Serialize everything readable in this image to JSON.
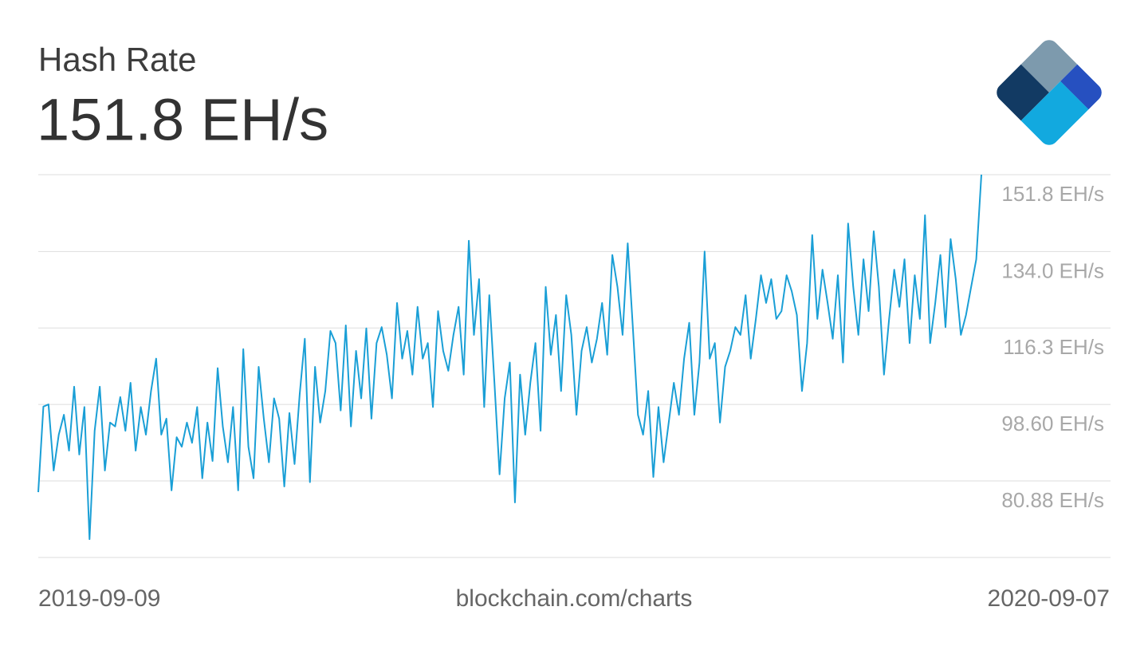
{
  "chart_data": {
    "type": "line",
    "title": "Hash Rate",
    "subtitle": "151.8 EH/s",
    "source": "blockchain.com/charts",
    "xlim": [
      "2019-09-09",
      "2020-09-07"
    ],
    "ylim": [
      63.16,
      151.8
    ],
    "yticks": [
      {
        "value": 151.8,
        "label": "151.8 EH/s"
      },
      {
        "value": 134.0,
        "label": "134.0 EH/s"
      },
      {
        "value": 116.3,
        "label": "116.3 EH/s"
      },
      {
        "value": 98.6,
        "label": "98.60 EH/s"
      },
      {
        "value": 80.88,
        "label": "80.88 EH/s"
      }
    ],
    "grid": true,
    "color": "#1a9fd6",
    "values": [
      78.3,
      98.1,
      98.6,
      83.3,
      91.6,
      96.2,
      87.9,
      102.7,
      87,
      98,
      67.4,
      92.5,
      102.7,
      83.3,
      94.4,
      93.5,
      100.3,
      92.5,
      103.6,
      87.9,
      98,
      91.6,
      101.7,
      109.2,
      91.6,
      95.3,
      78.7,
      91,
      88.8,
      94.4,
      89.7,
      98,
      81.5,
      94.4,
      85.5,
      107,
      93.5,
      85.2,
      98,
      78.7,
      111.4,
      88.8,
      81.5,
      107.3,
      95.3,
      85.2,
      100,
      95.3,
      79.6,
      96.6,
      84.8,
      100.9,
      113.8,
      80.6,
      107.3,
      94.4,
      101.7,
      115.6,
      112.8,
      97.2,
      116.9,
      93.5,
      111,
      100,
      116.2,
      95.3,
      112.8,
      116.5,
      110.1,
      100,
      122.1,
      109.2,
      115.6,
      105.5,
      121.2,
      109.2,
      112.8,
      98,
      120.2,
      111,
      106.4,
      114.7,
      121.2,
      105.5,
      136.5,
      114.7,
      127.6,
      98,
      123.9,
      103.6,
      82.4,
      100,
      108.3,
      75.9,
      105.5,
      91.6,
      103.6,
      112.8,
      92.5,
      125.8,
      110.1,
      119.3,
      101.7,
      123.9,
      114.7,
      96.2,
      111,
      116.5,
      108.3,
      113.8,
      122.1,
      110.1,
      133.2,
      125.8,
      114.7,
      135.9,
      116.5,
      96.2,
      91.6,
      101.7,
      81.8,
      98,
      85.2,
      94.4,
      103.6,
      96.2,
      109.2,
      117.5,
      96.2,
      108.3,
      134,
      109.2,
      112.8,
      94.4,
      107.3,
      111,
      116.5,
      114.7,
      123.9,
      109.2,
      118.4,
      128.5,
      122.1,
      127.6,
      118.4,
      120.2,
      128.5,
      124.8,
      119.3,
      101.7,
      112.8,
      137.8,
      118.4,
      129.8,
      122.1,
      113.8,
      128.5,
      108.3,
      140.5,
      125.8,
      114.7,
      132.2,
      120.2,
      138.7,
      125.8,
      105.5,
      118.4,
      129.8,
      121.2,
      132.2,
      112.8,
      128.5,
      118.4,
      142.4,
      112.8,
      122.1,
      133.2,
      116.5,
      136.9,
      127.6,
      114.7,
      119.3,
      125.8,
      132.2,
      151.8
    ]
  }
}
